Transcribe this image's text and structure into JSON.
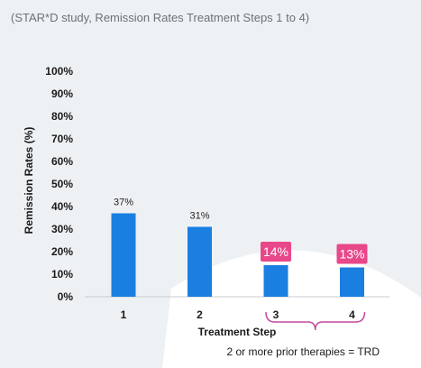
{
  "subtitle": "(STAR*D study, Remission Rates Treatment Steps 1 to 4)",
  "chart_data": {
    "type": "bar",
    "categories": [
      "1",
      "2",
      "3",
      "4"
    ],
    "values": [
      37,
      31,
      14,
      13
    ],
    "value_labels": [
      "37%",
      "31%",
      "14%",
      "13%"
    ],
    "highlighted": [
      false,
      false,
      true,
      true
    ],
    "xlabel": "Treatment Step",
    "ylabel": "Remission Rates (%)",
    "ylim": [
      0,
      100
    ],
    "yticks": [
      "0%",
      "10%",
      "20%",
      "30%",
      "40%",
      "50%",
      "60%",
      "70%",
      "80%",
      "90%",
      "100%"
    ],
    "grid": false,
    "bar_color": "#1a7fe0",
    "highlight_color": "#e8478a",
    "bracket_color": "#c24a9e",
    "annotation": "2 or more prior therapies = TRD"
  }
}
